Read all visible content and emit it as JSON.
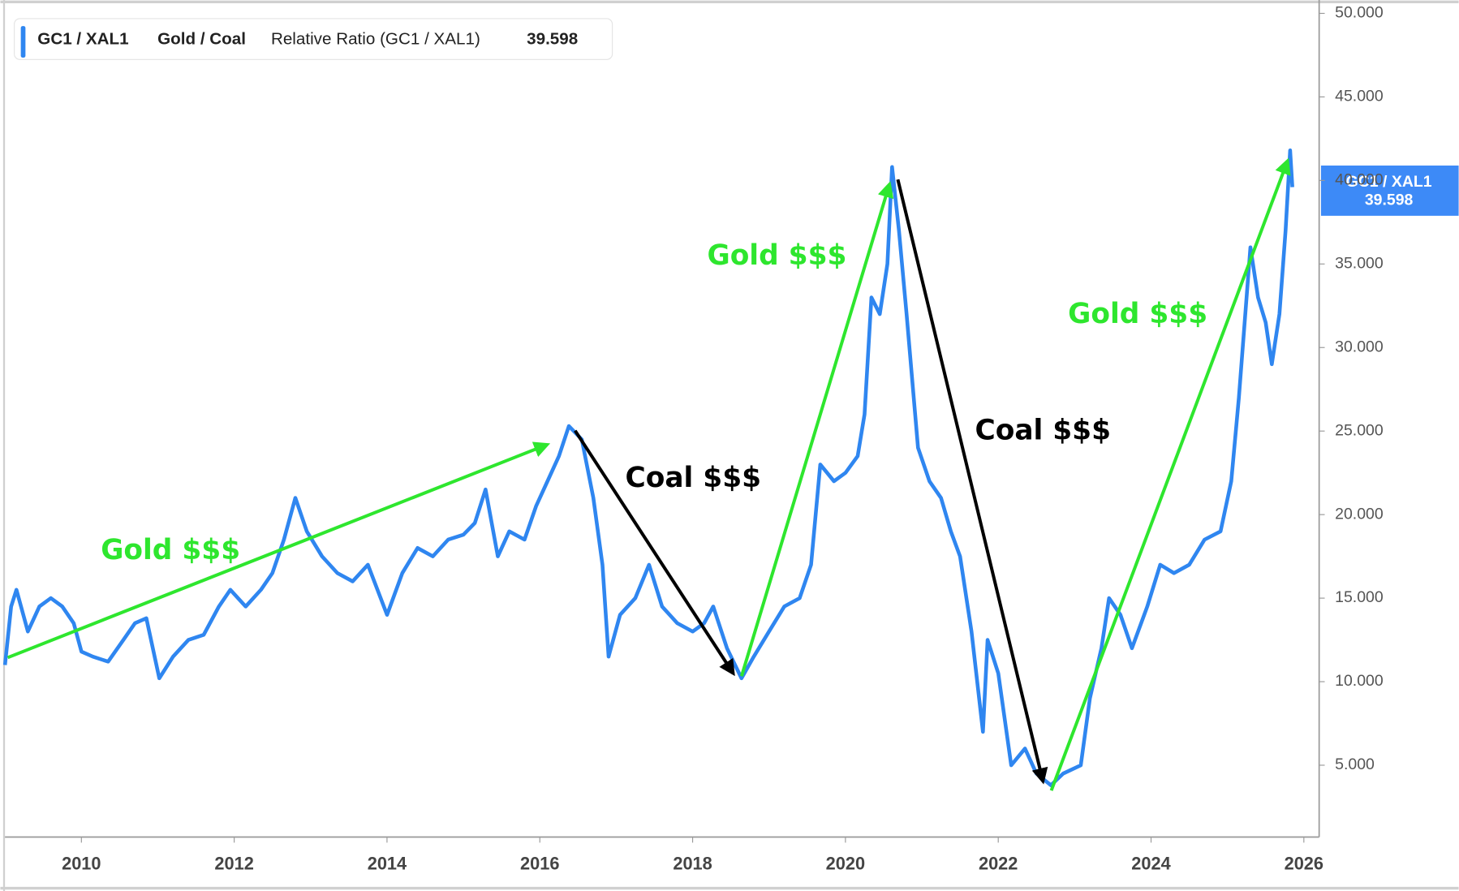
{
  "chart_data": {
    "type": "line",
    "legend": {
      "symbol": "GC1 / XAL1",
      "name": "Gold / Coal",
      "study": "Relative Ratio (GC1 / XAL1)"
    },
    "last_value": 39.598,
    "series": [
      {
        "name": "Gold / Coal",
        "color": "#2f86f0",
        "x": [
          2009.0,
          2009.08,
          2009.15,
          2009.3,
          2009.45,
          2009.6,
          2009.75,
          2009.9,
          2010.0,
          2010.15,
          2010.35,
          2010.55,
          2010.7,
          2010.85,
          2011.02,
          2011.2,
          2011.4,
          2011.6,
          2011.8,
          2011.95,
          2012.15,
          2012.35,
          2012.5,
          2012.65,
          2012.8,
          2012.95,
          2013.15,
          2013.35,
          2013.55,
          2013.75,
          2014.0,
          2014.2,
          2014.4,
          2014.6,
          2014.8,
          2015.0,
          2015.15,
          2015.29,
          2015.45,
          2015.6,
          2015.8,
          2015.95,
          2016.1,
          2016.25,
          2016.38,
          2016.55,
          2016.7,
          2016.82,
          2016.9,
          2017.05,
          2017.25,
          2017.43,
          2017.6,
          2017.8,
          2018.0,
          2018.15,
          2018.27,
          2018.45,
          2018.64,
          2018.8,
          2019.0,
          2019.2,
          2019.4,
          2019.55,
          2019.67,
          2019.85,
          2020.0,
          2020.16,
          2020.25,
          2020.34,
          2020.45,
          2020.55,
          2020.61,
          2020.7,
          2020.8,
          2020.95,
          2021.1,
          2021.25,
          2021.38,
          2021.5,
          2021.65,
          2021.8,
          2021.86,
          2022.0,
          2022.17,
          2022.35,
          2022.5,
          2022.69,
          2022.85,
          2023.08,
          2023.2,
          2023.35,
          2023.45,
          2023.6,
          2023.75,
          2023.95,
          2024.12,
          2024.3,
          2024.5,
          2024.7,
          2024.91,
          2025.05,
          2025.15,
          2025.3,
          2025.4,
          2025.5,
          2025.58,
          2025.68,
          2025.76,
          2025.82,
          2025.85
        ],
        "values": [
          11,
          14.5,
          15.5,
          13,
          14.5,
          15,
          14.5,
          13.5,
          11.8,
          11.5,
          11.2,
          12.5,
          13.5,
          13.8,
          10.2,
          11.5,
          12.5,
          12.8,
          14.5,
          15.5,
          14.5,
          15.5,
          16.5,
          18.5,
          21,
          19,
          17.5,
          16.5,
          16,
          17,
          14,
          16.5,
          18,
          17.5,
          18.5,
          18.8,
          19.5,
          21.5,
          17.5,
          19,
          18.5,
          20.5,
          22,
          23.5,
          25.3,
          24.5,
          21,
          17,
          11.5,
          14,
          15,
          17,
          14.5,
          13.5,
          13,
          13.5,
          14.5,
          12,
          10.2,
          11.5,
          13,
          14.5,
          15,
          17,
          23,
          22,
          22.5,
          23.5,
          26,
          33,
          32,
          35,
          40.8,
          37,
          32,
          24,
          22,
          21,
          19,
          17.5,
          13,
          7,
          12.5,
          10.5,
          5,
          6,
          4.5,
          3.8,
          4.5,
          5,
          9,
          12,
          15,
          14,
          12,
          14.5,
          17,
          16.5,
          17,
          18.5,
          19,
          22,
          27,
          36,
          33,
          31.5,
          29,
          32,
          37,
          41.8,
          39.598
        ]
      }
    ],
    "xlim": [
      2009.0,
      2026.2
    ],
    "xticks": [
      2010,
      2012,
      2014,
      2016,
      2018,
      2020,
      2022,
      2024,
      2026
    ],
    "ylim": [
      0.7,
      50.8
    ],
    "yticks": [
      {
        "value": 5,
        "label": "5.000"
      },
      {
        "value": 10,
        "label": "10.000"
      },
      {
        "value": 15,
        "label": "15.000"
      },
      {
        "value": 20,
        "label": "20.000"
      },
      {
        "value": 25,
        "label": "25.000"
      },
      {
        "value": 30,
        "label": "30.000"
      },
      {
        "value": 35,
        "label": "35.000"
      },
      {
        "value": 40,
        "label": "40.000"
      },
      {
        "value": 45,
        "label": "45.000"
      },
      {
        "value": 50,
        "label": "50.000"
      }
    ],
    "annotations": [
      {
        "text": "Gold $$$",
        "color": "#2ee62e"
      },
      {
        "text": "Coal $$$",
        "color": "#000000"
      },
      {
        "text": "Gold $$$",
        "color": "#2ee62e"
      },
      {
        "text": "Coal $$$",
        "color": "#000000"
      },
      {
        "text": "Gold $$$",
        "color": "#2ee62e"
      }
    ]
  }
}
